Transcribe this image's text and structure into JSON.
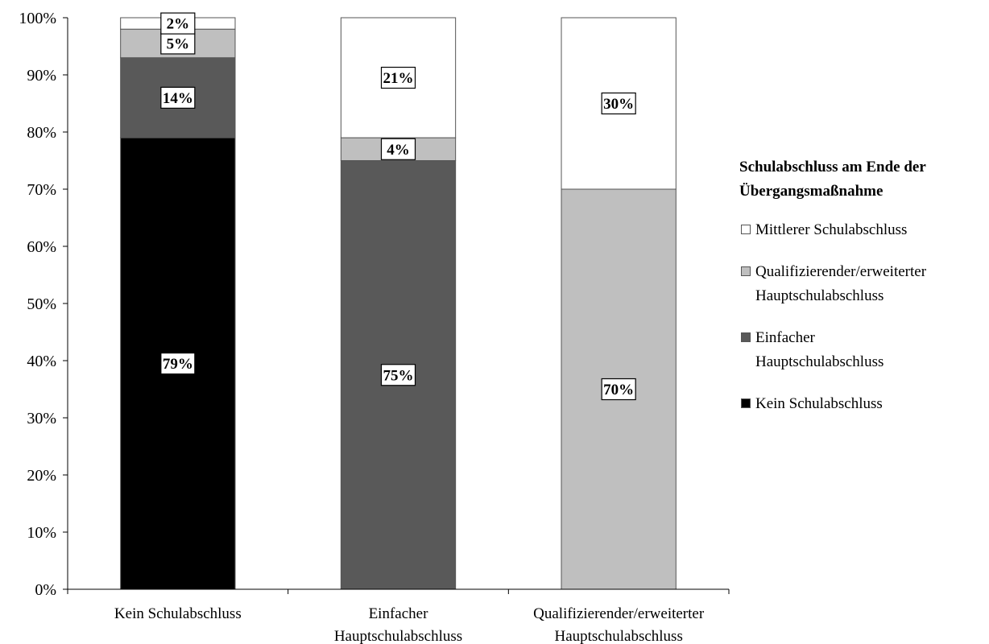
{
  "chart_data": {
    "type": "bar",
    "stacked": true,
    "categories": [
      "Kein Schulabschluss",
      "Einfacher Hauptschulabschluss",
      "Qualifizierender/erweiterter Hauptschulabschluss"
    ],
    "category_lines": [
      [
        "Kein Schulabschluss"
      ],
      [
        "Einfacher",
        "Hauptschulabschluss"
      ],
      [
        "Qualifizierender/erweiterter",
        "Hauptschulabschluss"
      ]
    ],
    "series": [
      {
        "name": "Kein Schulabschluss",
        "color": "#000000",
        "values": [
          79,
          0,
          0
        ]
      },
      {
        "name": "Einfacher Hauptschulabschluss",
        "color": "#595959",
        "values": [
          14,
          75,
          0
        ]
      },
      {
        "name": "Qualifizierender/erweiterter Hauptschulabschluss",
        "color": "#bfbfbf",
        "values": [
          5,
          4,
          70
        ]
      },
      {
        "name": "Mittlerer Schulabschluss",
        "color": "#ffffff",
        "values": [
          2,
          21,
          30
        ]
      }
    ],
    "data_labels": [
      [
        "79%",
        "",
        ""
      ],
      [
        "14%",
        "75%",
        ""
      ],
      [
        "5%",
        "4%",
        "70%"
      ],
      [
        "2%",
        "21%",
        "30%"
      ]
    ],
    "yticks": [
      "0%",
      "10%",
      "20%",
      "30%",
      "40%",
      "50%",
      "60%",
      "70%",
      "80%",
      "90%",
      "100%"
    ],
    "ylim": [
      0,
      100
    ],
    "grid": false,
    "legend": {
      "title": "Schulabschluss am Ende der Übergangsmaßnahme",
      "title_lines": [
        "Schulabschluss am Ende der",
        "Übergangsmaßnahme"
      ],
      "placement": "right",
      "items": [
        {
          "lines": [
            "Mittlerer Schulabschluss"
          ],
          "color": "#ffffff"
        },
        {
          "lines": [
            "Qualifizierender/erweiterter",
            "Hauptschulabschluss"
          ],
          "color": "#bfbfbf"
        },
        {
          "lines": [
            "Einfacher",
            "Hauptschulabschluss"
          ],
          "color": "#595959"
        },
        {
          "lines": [
            "Kein Schulabschluss"
          ],
          "color": "#000000"
        }
      ]
    }
  }
}
